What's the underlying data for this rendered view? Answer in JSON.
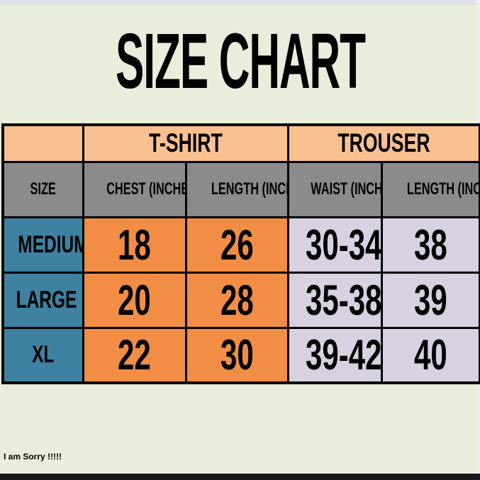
{
  "page": {
    "title": "SIZE CHART",
    "footer_note": "I am Sorry !!!!!",
    "colors": {
      "background": "#e9eedc",
      "group_header_bg": "#f9c091",
      "column_header_bg": "#8b8b8b",
      "size_column_bg": "#3f81a1",
      "tshirt_columns_bg": "#f18d45",
      "trouser_columns_bg": "#d7d1e1",
      "border": "#000000",
      "bottom_bar": "#1a1a1a",
      "text": "#000000"
    }
  },
  "table": {
    "group_headers": {
      "size_spacer": "",
      "tshirt": "T-SHIRT",
      "trouser": "TROUSER"
    },
    "column_headers": [
      "SIZE",
      "CHEST (INCHES)",
      "LENGTH (INCHES)",
      "WAIST (INCHES)",
      "LENGTH (INCHES)"
    ],
    "rows": [
      {
        "size_label": "MEDIUM",
        "tshirt_chest": "18",
        "tshirt_length": "26",
        "trouser_waist": "30-34",
        "trouser_length": "38"
      },
      {
        "size_label": "LARGE",
        "tshirt_chest": "20",
        "tshirt_length": "28",
        "trouser_waist": "35-38",
        "trouser_length": "39"
      },
      {
        "size_label": "XL",
        "tshirt_chest": "22",
        "tshirt_length": "30",
        "trouser_waist": "39-42",
        "trouser_length": "40"
      }
    ]
  },
  "chart_data": {
    "type": "table",
    "title": "SIZE CHART",
    "column_groups": [
      {
        "label": "",
        "span": 1
      },
      {
        "label": "T-SHIRT",
        "span": 2
      },
      {
        "label": "TROUSER",
        "span": 2
      }
    ],
    "columns": [
      "SIZE",
      "CHEST (INCHES)",
      "LENGTH (INCHES)",
      "WAIST (INCHES)",
      "LENGTH (INCHES)"
    ],
    "rows": [
      [
        "MEDIUM",
        "18",
        "26",
        "30-34",
        "38"
      ],
      [
        "LARGE",
        "20",
        "28",
        "35-38",
        "39"
      ],
      [
        "XL",
        "22",
        "30",
        "39-42",
        "40"
      ]
    ],
    "annotation": "I am Sorry !!!!!"
  }
}
